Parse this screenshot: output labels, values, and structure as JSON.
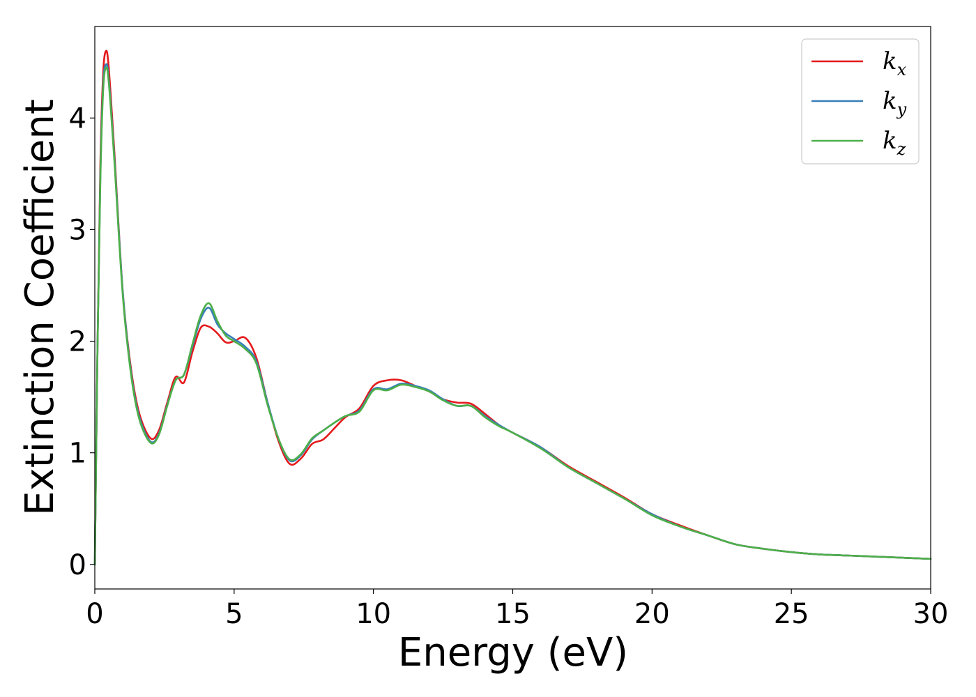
{
  "chart_data": {
    "type": "line",
    "xlabel": "Energy (eV)",
    "ylabel": "Extinction Coefficient",
    "xlim": [
      0,
      30
    ],
    "ylim": [
      -0.22,
      4.82
    ],
    "xticks": [
      0,
      5,
      10,
      15,
      20,
      25,
      30
    ],
    "yticks": [
      0,
      1,
      2,
      3,
      4
    ],
    "grid": false,
    "legend_position": "top-right",
    "series": [
      {
        "name": "kx",
        "label_main": "k",
        "label_sub": "x",
        "color": "#e41a1c",
        "x": [
          0,
          0.1,
          0.2,
          0.3,
          0.4,
          0.5,
          0.7,
          1.0,
          1.3,
          1.6,
          2.0,
          2.3,
          2.6,
          2.9,
          3.2,
          3.5,
          3.8,
          4.1,
          4.4,
          4.7,
          5.0,
          5.4,
          5.8,
          6.2,
          6.6,
          7.0,
          7.4,
          7.8,
          8.2,
          8.6,
          9.0,
          9.5,
          10.0,
          10.5,
          11.0,
          11.5,
          12.0,
          12.5,
          13.0,
          13.5,
          14.0,
          14.5,
          15.0,
          16.0,
          17.0,
          18.0,
          19.0,
          20.0,
          21.0,
          22.0,
          23.0,
          24.0,
          25.0,
          26.0,
          27.0,
          28.0,
          29.0,
          30.0
        ],
        "y": [
          0.0,
          2.0,
          3.6,
          4.4,
          4.6,
          4.45,
          3.7,
          2.45,
          1.75,
          1.35,
          1.13,
          1.2,
          1.45,
          1.68,
          1.63,
          1.9,
          2.12,
          2.13,
          2.07,
          1.99,
          2.0,
          2.03,
          1.85,
          1.45,
          1.1,
          0.9,
          0.95,
          1.08,
          1.12,
          1.22,
          1.32,
          1.4,
          1.6,
          1.65,
          1.65,
          1.6,
          1.55,
          1.48,
          1.45,
          1.44,
          1.35,
          1.25,
          1.18,
          1.05,
          0.88,
          0.74,
          0.6,
          0.45,
          0.35,
          0.26,
          0.18,
          0.14,
          0.11,
          0.09,
          0.08,
          0.07,
          0.06,
          0.05
        ]
      },
      {
        "name": "ky",
        "label_main": "k",
        "label_sub": "y",
        "color": "#377eb8",
        "x": [
          0,
          0.1,
          0.2,
          0.3,
          0.4,
          0.5,
          0.7,
          1.0,
          1.3,
          1.6,
          2.0,
          2.3,
          2.6,
          2.9,
          3.2,
          3.5,
          3.8,
          4.1,
          4.4,
          4.7,
          5.0,
          5.4,
          5.8,
          6.2,
          6.6,
          7.0,
          7.4,
          7.8,
          8.2,
          8.6,
          9.0,
          9.5,
          10.0,
          10.5,
          11.0,
          11.5,
          12.0,
          12.5,
          13.0,
          13.5,
          14.0,
          14.5,
          15.0,
          16.0,
          17.0,
          18.0,
          19.0,
          20.0,
          21.0,
          22.0,
          23.0,
          24.0,
          25.0,
          26.0,
          27.0,
          28.0,
          29.0,
          30.0
        ],
        "y": [
          0.0,
          2.0,
          3.5,
          4.3,
          4.48,
          4.35,
          3.65,
          2.45,
          1.72,
          1.32,
          1.1,
          1.17,
          1.43,
          1.65,
          1.7,
          1.95,
          2.2,
          2.3,
          2.15,
          2.07,
          2.02,
          1.95,
          1.82,
          1.45,
          1.12,
          0.93,
          0.98,
          1.12,
          1.2,
          1.27,
          1.33,
          1.38,
          1.57,
          1.57,
          1.62,
          1.6,
          1.56,
          1.48,
          1.42,
          1.42,
          1.33,
          1.25,
          1.18,
          1.05,
          0.87,
          0.73,
          0.59,
          0.45,
          0.34,
          0.26,
          0.18,
          0.14,
          0.11,
          0.09,
          0.08,
          0.07,
          0.06,
          0.05
        ]
      },
      {
        "name": "kz",
        "label_main": "k",
        "label_sub": "z",
        "color": "#4daf4a",
        "x": [
          0,
          0.1,
          0.2,
          0.3,
          0.4,
          0.5,
          0.7,
          1.0,
          1.3,
          1.6,
          2.0,
          2.3,
          2.6,
          2.9,
          3.2,
          3.5,
          3.8,
          4.1,
          4.4,
          4.7,
          5.0,
          5.4,
          5.8,
          6.2,
          6.6,
          7.0,
          7.4,
          7.8,
          8.2,
          8.6,
          9.0,
          9.5,
          10.0,
          10.5,
          11.0,
          11.5,
          12.0,
          12.5,
          13.0,
          13.5,
          14.0,
          14.5,
          15.0,
          16.0,
          17.0,
          18.0,
          19.0,
          20.0,
          21.0,
          22.0,
          23.0,
          24.0,
          25.0,
          26.0,
          27.0,
          28.0,
          29.0,
          30.0
        ],
        "y": [
          0.0,
          2.0,
          3.45,
          4.25,
          4.45,
          4.32,
          3.62,
          2.42,
          1.7,
          1.3,
          1.09,
          1.16,
          1.42,
          1.65,
          1.7,
          1.97,
          2.23,
          2.34,
          2.18,
          2.05,
          2.0,
          1.93,
          1.8,
          1.43,
          1.12,
          0.94,
          0.99,
          1.13,
          1.2,
          1.27,
          1.33,
          1.37,
          1.56,
          1.56,
          1.61,
          1.59,
          1.55,
          1.47,
          1.42,
          1.42,
          1.32,
          1.24,
          1.18,
          1.04,
          0.87,
          0.73,
          0.59,
          0.44,
          0.34,
          0.26,
          0.18,
          0.14,
          0.11,
          0.09,
          0.08,
          0.07,
          0.06,
          0.05
        ]
      }
    ]
  }
}
